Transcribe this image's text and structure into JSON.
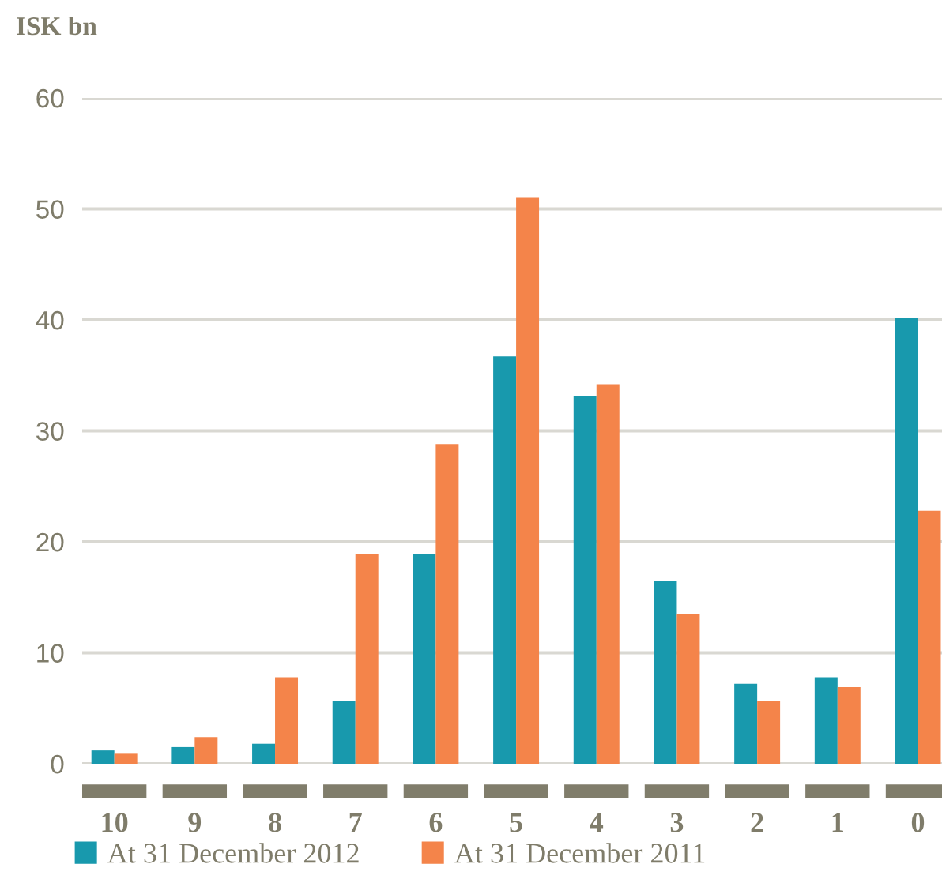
{
  "chart_data": {
    "type": "bar",
    "ylabel": "ISK bn",
    "categories": [
      "10",
      "9",
      "8",
      "7",
      "6",
      "5",
      "4",
      "3",
      "2",
      "1",
      "0"
    ],
    "series": [
      {
        "name": "At 31 December 2012",
        "color": "#1899ad",
        "values": [
          1.2,
          1.5,
          1.8,
          5.7,
          18.9,
          36.7,
          33.1,
          16.5,
          7.2,
          7.8,
          40.2
        ]
      },
      {
        "name": "At 31 December 2011",
        "color": "#f4844a",
        "values": [
          0.9,
          2.4,
          7.8,
          18.9,
          28.8,
          51.0,
          34.2,
          13.5,
          5.7,
          6.9,
          22.8
        ]
      }
    ],
    "ylim": [
      0,
      60
    ],
    "yticks": [
      0,
      10,
      20,
      30,
      40,
      50,
      60
    ],
    "grid": "y",
    "legend": "bottom"
  }
}
